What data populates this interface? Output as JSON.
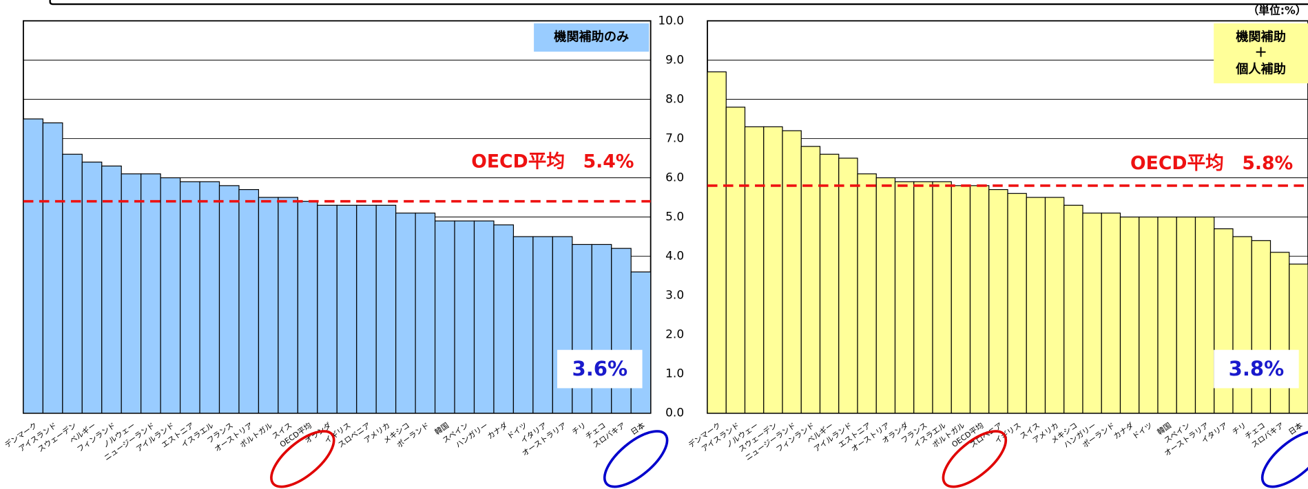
{
  "chart_data": [
    {
      "type": "bar",
      "title": "機関補助のみ",
      "categories": [
        "デンマーク",
        "アイスランド",
        "スウェーデン",
        "ベルギー",
        "フィンランド",
        "ノルウェー",
        "ニュージーランド",
        "アイルランド",
        "エストニア",
        "イスラエル",
        "フランス",
        "オーストリア",
        "ポルトガル",
        "スイス",
        "OECD平均",
        "オランダ",
        "イギリス",
        "スロベニア",
        "アメリカ",
        "メキシコ",
        "ポーランド",
        "韓国",
        "スペイン",
        "ハンガリー",
        "カナダ",
        "ドイツ",
        "イタリア",
        "オーストラリア",
        "チリ",
        "チェコ",
        "スロバキア",
        "日本"
      ],
      "values": [
        7.5,
        7.4,
        6.6,
        6.4,
        6.3,
        6.1,
        6.1,
        6.0,
        5.9,
        5.9,
        5.8,
        5.7,
        5.5,
        5.5,
        5.4,
        5.3,
        5.3,
        5.3,
        5.3,
        5.1,
        5.1,
        4.9,
        4.9,
        4.9,
        4.8,
        4.5,
        4.5,
        4.5,
        4.3,
        4.3,
        4.2,
        3.6
      ],
      "color": "#99ccff",
      "ylim": [
        0,
        10
      ],
      "yticks": [
        0,
        1,
        2,
        3,
        4,
        5,
        6,
        7,
        8,
        9,
        10
      ],
      "grid": true,
      "average_label": "OECD平均　5.4%",
      "value_callout": "3.6%"
    },
    {
      "type": "bar",
      "title": "機関補助\n＋\n個人補助",
      "unit": "（単位:%）",
      "categories": [
        "デンマーク",
        "アイスランド",
        "ノルウェー",
        "スウェーデン",
        "ニュージーランド",
        "フィンランド",
        "ベルギー",
        "アイルランド",
        "エストニア",
        "オーストリア",
        "オランダ",
        "フランス",
        "イスラエル",
        "ポルトガル",
        "OECD平均",
        "スロベニア",
        "イギリス",
        "スイス",
        "アメリカ",
        "メキシコ",
        "ハンガリー",
        "ポーランド",
        "カナダ",
        "ドイツ",
        "韓国",
        "スペイン",
        "オーストラリア",
        "イタリア",
        "チリ",
        "チェコ",
        "スロバキア",
        "日本"
      ],
      "values": [
        8.7,
        7.8,
        7.3,
        7.3,
        7.2,
        6.8,
        6.6,
        6.5,
        6.1,
        6.0,
        5.9,
        5.9,
        5.9,
        5.8,
        5.8,
        5.7,
        5.6,
        5.5,
        5.5,
        5.3,
        5.1,
        5.1,
        5.0,
        5.0,
        5.0,
        5.0,
        5.0,
        4.7,
        4.5,
        4.4,
        4.1,
        3.8
      ],
      "color": "#ffff99",
      "ylim": [
        0,
        10
      ],
      "yticks": [
        {
          "value": 0,
          "label": "0.0"
        },
        {
          "value": 1,
          "label": "1.0"
        },
        {
          "value": 2,
          "label": "2.0"
        },
        {
          "value": 3,
          "label": "3.0"
        },
        {
          "value": 4,
          "label": "4.0"
        },
        {
          "value": 5,
          "label": "5.0"
        },
        {
          "value": 6,
          "label": "6.0"
        },
        {
          "value": 7,
          "label": "7.0"
        },
        {
          "value": 8,
          "label": "8.0"
        },
        {
          "value": 9,
          "label": "9.0"
        },
        {
          "value": 10,
          "label": "10.0"
        }
      ],
      "grid": true,
      "average_label": "OECD平均　5.8%",
      "value_callout": "3.8%"
    }
  ]
}
